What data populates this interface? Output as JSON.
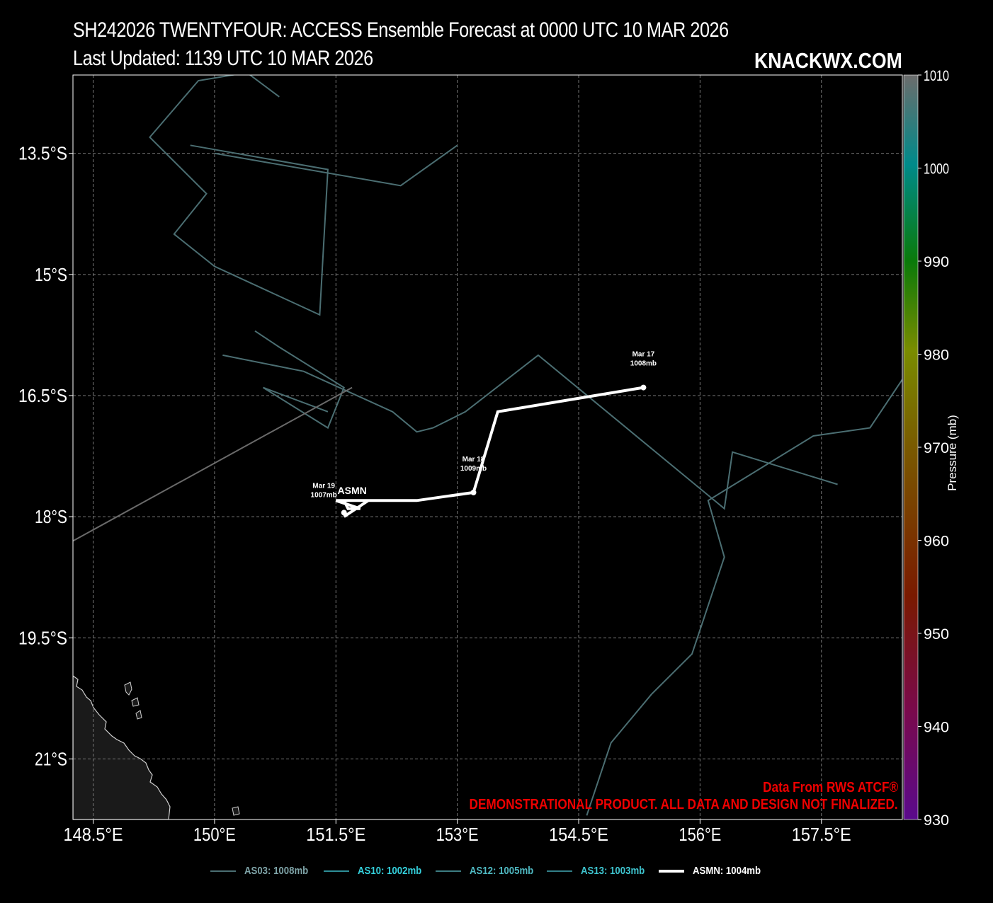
{
  "title": {
    "line1": "SH242026 TWENTYFOUR: ACCESS Ensemble Forecast at 0000 UTC 10 MAR 2026",
    "line2": "Last Updated: 1139 UTC 10 MAR 2026",
    "brand": "KNACKWX.COM"
  },
  "axes": {
    "lon_ticks": [
      {
        "value": 148.5,
        "label": "148.5°E"
      },
      {
        "value": 150.0,
        "label": "150°E"
      },
      {
        "value": 151.5,
        "label": "151.5°E"
      },
      {
        "value": 153.0,
        "label": "153°E"
      },
      {
        "value": 154.5,
        "label": "154.5°E"
      },
      {
        "value": 156.0,
        "label": "156°E"
      },
      {
        "value": 157.5,
        "label": "157.5°E"
      }
    ],
    "lat_ticks": [
      {
        "value": -13.5,
        "label": "13.5°S"
      },
      {
        "value": -15.0,
        "label": "15°S"
      },
      {
        "value": -16.5,
        "label": "16.5°S"
      },
      {
        "value": -18.0,
        "label": "18°S"
      },
      {
        "value": -19.5,
        "label": "19.5°S"
      },
      {
        "value": -21.0,
        "label": "21°S"
      }
    ],
    "lon_range": [
      148.25,
      158.5
    ],
    "lat_range": [
      -21.75,
      -12.53
    ],
    "grid": true
  },
  "colorbar": {
    "title": "Pressure (mb)",
    "min": 930,
    "max": 1010,
    "ticks": [
      "1010",
      "1000",
      "990",
      "980",
      "970",
      "960",
      "950",
      "940",
      "930"
    ]
  },
  "colors": {
    "ensemble_track": "#4b6e72",
    "mean_track": "#ffffff",
    "credit": "#e00000",
    "land": "#1a1a1a"
  },
  "tracks": [
    {
      "id": "AS03",
      "points": [
        [
          150.8,
          -12.8
        ],
        [
          150.4,
          -12.5
        ],
        [
          149.8,
          -12.6
        ],
        [
          149.2,
          -13.3
        ],
        [
          149.9,
          -14.0
        ],
        [
          149.5,
          -14.5
        ],
        [
          150.0,
          -14.9
        ],
        [
          151.3,
          -15.5
        ],
        [
          151.4,
          -13.7
        ],
        [
          149.7,
          -13.4
        ]
      ]
    },
    {
      "id": "AS10",
      "points": [
        [
          153.0,
          -13.4
        ],
        [
          152.3,
          -13.9
        ],
        [
          150.0,
          -13.5
        ]
      ]
    },
    {
      "id": "AS12",
      "points": [
        [
          150.1,
          -16.0
        ],
        [
          151.1,
          -16.2
        ],
        [
          152.2,
          -16.7
        ],
        [
          152.5,
          -16.95
        ],
        [
          152.7,
          -16.9
        ],
        [
          153.1,
          -16.7
        ],
        [
          154.0,
          -16.0
        ],
        [
          156.3,
          -17.9
        ],
        [
          156.4,
          -17.2
        ],
        [
          157.7,
          -17.6
        ]
      ]
    },
    {
      "id": "AS13",
      "points": [
        [
          150.5,
          -15.7
        ],
        [
          150.8,
          -15.9
        ],
        [
          151.6,
          -16.4
        ],
        [
          151.4,
          -16.9
        ],
        [
          150.6,
          -16.4
        ],
        [
          151.4,
          -16.7
        ]
      ]
    },
    {
      "id": "AS13b",
      "points": [
        [
          148.25,
          -18.3
        ],
        [
          151.7,
          -16.4
        ]
      ]
    },
    {
      "id": "AS13c",
      "points": [
        [
          158.5,
          -16.3
        ],
        [
          158.1,
          -16.9
        ],
        [
          157.4,
          -17.0
        ],
        [
          156.1,
          -17.8
        ],
        [
          156.3,
          -18.5
        ],
        [
          155.9,
          -19.7
        ],
        [
          155.4,
          -20.2
        ],
        [
          154.9,
          -20.8
        ],
        [
          154.6,
          -21.7
        ]
      ]
    }
  ],
  "mean_track": {
    "label": "ASMN",
    "points": [
      [
        155.3,
        -16.4
      ],
      [
        153.5,
        -16.7
      ],
      [
        153.2,
        -17.7
      ],
      [
        152.5,
        -17.8
      ],
      [
        151.6,
        -17.8
      ],
      [
        151.65,
        -17.9
      ],
      [
        151.8,
        -17.9
      ],
      [
        151.5,
        -17.8
      ],
      [
        151.9,
        -17.8
      ],
      [
        151.6,
        -18.0
      ]
    ],
    "markers": [
      {
        "lon": 155.3,
        "lat": -16.4,
        "date": "Mar 17",
        "pressure": "1008mb"
      },
      {
        "lon": 153.2,
        "lat": -17.7,
        "date": "Mar 18",
        "pressure": "1009mb"
      },
      {
        "lon": 151.6,
        "lat": -17.95,
        "date": "Mar 19",
        "pressure": "1007mb"
      }
    ]
  },
  "legend": [
    {
      "label": "AS03: 1008mb",
      "color": "#4b6e72",
      "text_color": "#7fa4a8"
    },
    {
      "label": "AS10: 1002mb",
      "color": "#2e8e97",
      "text_color": "#34d0dc"
    },
    {
      "label": "AS12: 1005mb",
      "color": "#3d7c82",
      "text_color": "#4fb9c2"
    },
    {
      "label": "AS13: 1003mb",
      "color": "#337f88",
      "text_color": "#3ec4cf"
    },
    {
      "label": "ASMN: 1004mb",
      "color": "#ffffff",
      "text_color": "#ffffff"
    }
  ],
  "credits": {
    "line1": "Data From RWS ATCF®",
    "line2": "DEMONSTRATIONAL PRODUCT. ALL DATA AND DESIGN NOT FINALIZED."
  }
}
